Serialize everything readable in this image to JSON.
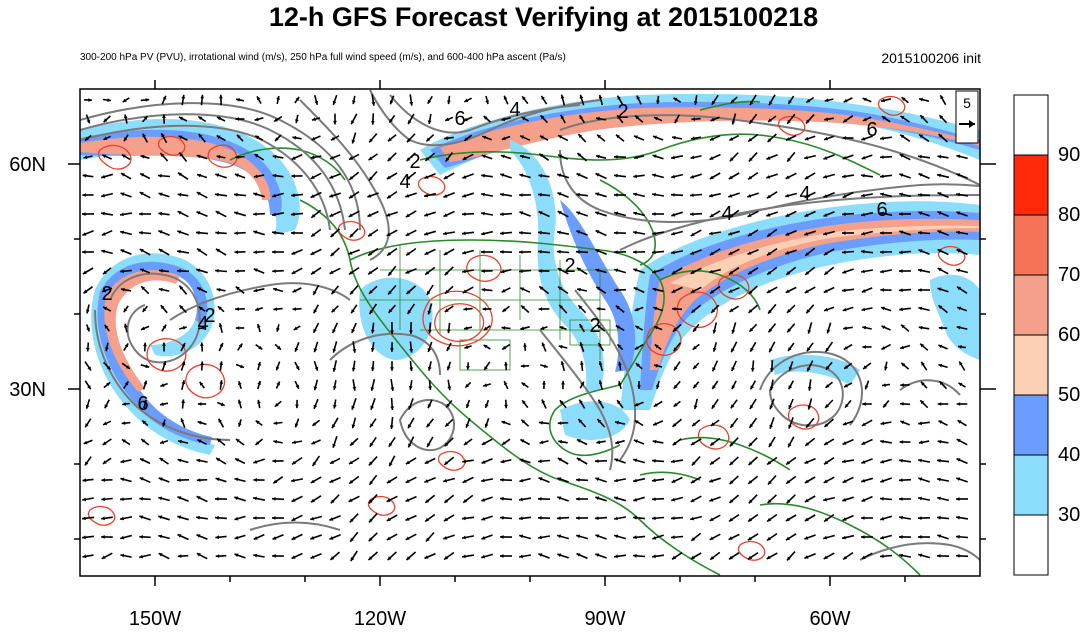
{
  "title": "12-h GFS Forecast Verifying at 2015100218",
  "subtitle": "300-200 hPa PV (PVU), irrotational wind (m/s), 250 hPa full wind speed (m/s), and 600-400 hPa ascent (Pa/s)",
  "init_label": "2015100206 init",
  "map": {
    "lon_labels": [
      "150W",
      "120W",
      "90W",
      "60W"
    ],
    "lat_labels": [
      "60N",
      "30N"
    ],
    "contour_labels": [
      "2",
      "4",
      "6",
      "2",
      "4",
      "6",
      "4",
      "4",
      "6",
      "2",
      "2",
      "6",
      "2",
      "4",
      "2"
    ],
    "reference_vector_label": "5",
    "colors": {
      "land": "#2a8a2a",
      "pv_contour": "#7a7a7a",
      "ascent_contour": "#e8402a",
      "vector": "#000000"
    }
  },
  "colorbar": {
    "labels": [
      "90",
      "80",
      "70",
      "60",
      "50",
      "40",
      "30"
    ],
    "colors": [
      "#ffffff",
      "#ff2a0a",
      "#f47356",
      "#f4a08a",
      "#fcd0b4",
      "#6b9cff",
      "#8cdcfc",
      "#ffffff"
    ]
  }
}
